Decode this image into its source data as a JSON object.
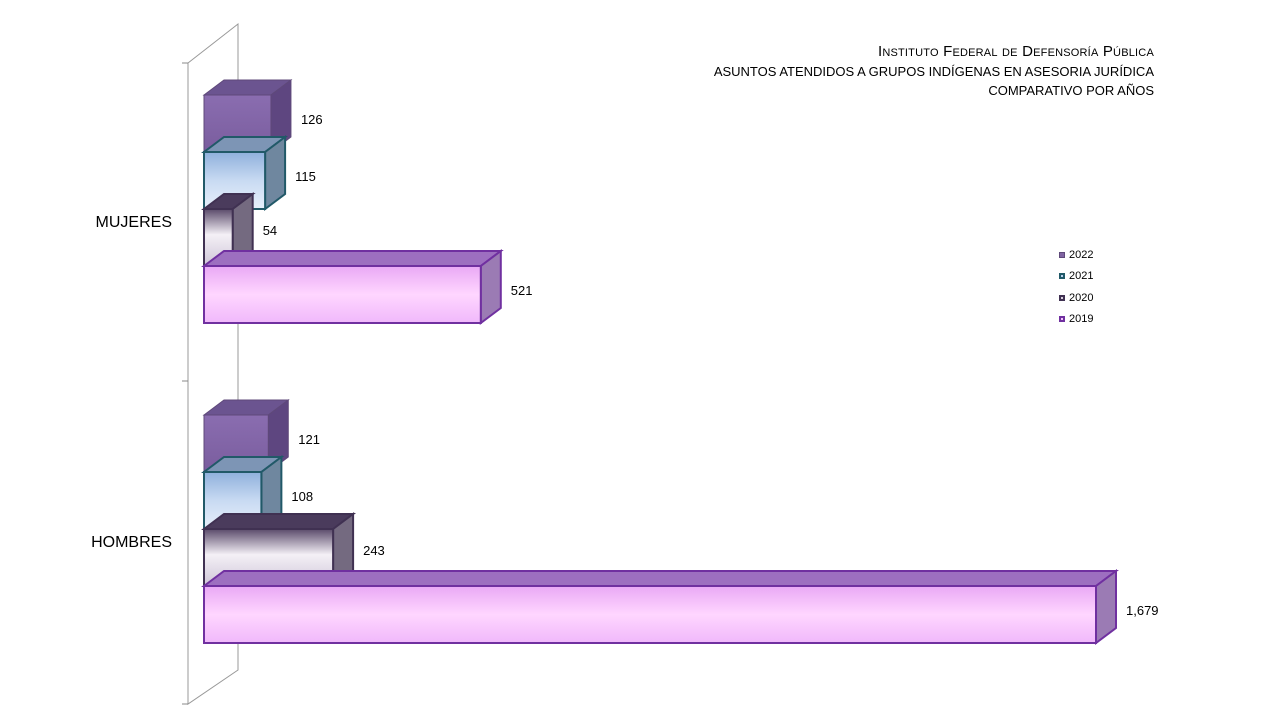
{
  "title": {
    "main": "Instituto Federal de Defensoría Pública",
    "line1": "ASUNTOS ATENDIDOS A GRUPOS INDÍGENAS  EN ASESORIA JURÍDICA",
    "line2": "COMPARATIVO POR AÑOS"
  },
  "chart_data": {
    "type": "bar",
    "orientation": "horizontal",
    "style": "3d",
    "categories": [
      "MUJERES",
      "HOMBRES"
    ],
    "series": [
      {
        "name": "2022",
        "values": [
          126,
          121
        ],
        "value_labels": [
          "126",
          "121"
        ],
        "color": "#8064a2",
        "edge": "#5f497a"
      },
      {
        "name": "2021",
        "values": [
          115,
          108
        ],
        "value_labels": [
          "115",
          "108"
        ],
        "color": "#b9cfee",
        "edge": "#215968"
      },
      {
        "name": "2020",
        "values": [
          54,
          243
        ],
        "value_labels": [
          "54",
          "243"
        ],
        "color": "#d9d0de",
        "edge": "#403152"
      },
      {
        "name": "2019",
        "values": [
          521,
          1679
        ],
        "value_labels": [
          "521",
          "1,679"
        ],
        "color": "#f4c6fb",
        "edge": "#7030a0"
      }
    ],
    "legend_position": "right",
    "grid": false
  }
}
